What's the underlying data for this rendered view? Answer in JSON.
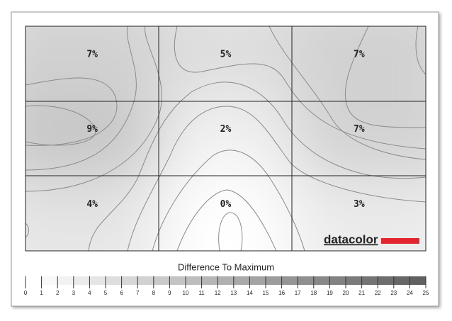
{
  "chart_data": {
    "type": "uniformity-grid",
    "title": "Difference To Maximum",
    "brand": "datacolor",
    "values": [
      [
        7,
        5,
        7
      ],
      [
        9,
        2,
        7
      ],
      [
        4,
        0,
        3
      ]
    ],
    "value_labels": [
      [
        "7%",
        "5%",
        "7%"
      ],
      [
        "9%",
        "2%",
        "7%"
      ],
      [
        "4%",
        "0%",
        "3%"
      ]
    ],
    "zlim": [
      0,
      25
    ],
    "zticks": [
      0,
      1,
      2,
      3,
      4,
      5,
      6,
      7,
      8,
      9,
      10,
      11,
      12,
      13,
      14,
      15,
      16,
      17,
      18,
      19,
      20,
      21,
      22,
      23,
      24,
      25
    ],
    "color_low": "#ffffff",
    "color_high": "#5a5a5a"
  }
}
